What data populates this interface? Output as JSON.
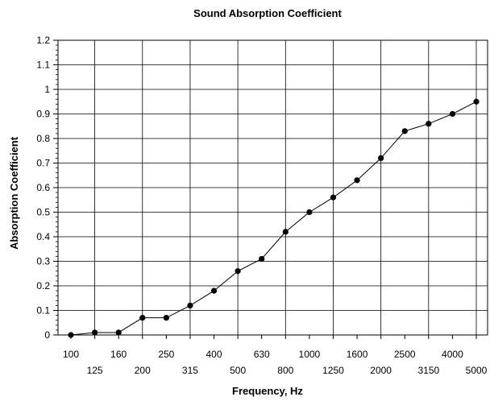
{
  "chart_data": {
    "type": "line",
    "title": "Sound Absorption Coefficient",
    "xlabel": "Frequency, Hz",
    "ylabel": "Absorption Coefficient",
    "categories": [
      "100",
      "125",
      "160",
      "200",
      "250",
      "315",
      "400",
      "500",
      "630",
      "800",
      "1000",
      "1250",
      "1600",
      "2000",
      "2500",
      "3150",
      "4000",
      "5000"
    ],
    "series": [
      {
        "values": [
          0.0,
          0.01,
          0.01,
          0.07,
          0.07,
          0.12,
          0.18,
          0.26,
          0.31,
          0.42,
          0.5,
          0.56,
          0.63,
          0.72,
          0.83,
          0.86,
          0.9,
          0.95
        ]
      }
    ],
    "yticks": [
      "0",
      "0.1",
      "0.2",
      "0.3",
      "0.4",
      "0.5",
      "0.6",
      "0.7",
      "0.8",
      "0.9",
      "1",
      "1.1",
      "1.2"
    ],
    "ylim": [
      0,
      1.2
    ],
    "grid": true,
    "legend": "none",
    "colors": {
      "line": "#000000",
      "markers": "#000000",
      "grid": "#000000"
    }
  }
}
